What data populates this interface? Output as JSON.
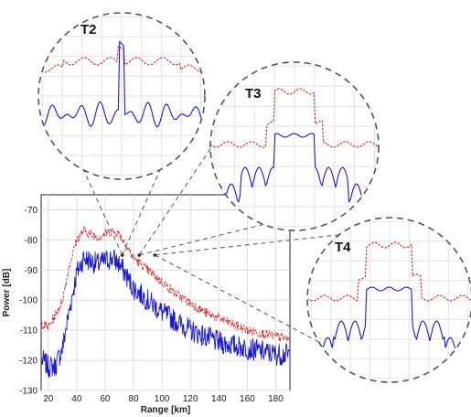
{
  "chart_data": {
    "type": "line",
    "title": "",
    "xlabel": "Range [km]",
    "ylabel": "Power [dB]",
    "xlim": [
      15,
      190
    ],
    "ylim": [
      -130,
      -65
    ],
    "xticks": [
      20,
      40,
      60,
      80,
      100,
      120,
      140,
      160,
      180
    ],
    "yticks": [
      -70,
      -80,
      -90,
      -100,
      -110,
      -120,
      -130
    ],
    "grid": true,
    "series": [
      {
        "color": "#d62020",
        "style": "dashed",
        "x": [
          16,
          20,
          25,
          30,
          35,
          40,
          45,
          50,
          55,
          60,
          65,
          70,
          75,
          80,
          85,
          90,
          95,
          100,
          110,
          120,
          130,
          140,
          150,
          160,
          170,
          180,
          190
        ],
        "values": [
          -108,
          -109,
          -105,
          -100,
          -88,
          -80,
          -77,
          -78,
          -79,
          -78,
          -77,
          -78,
          -82,
          -86,
          -88,
          -90,
          -92,
          -94,
          -98,
          -101,
          -104,
          -106,
          -108,
          -110,
          -111,
          -112,
          -113
        ]
      },
      {
        "color": "#1a1acc",
        "style": "solid",
        "x": [
          16,
          20,
          25,
          30,
          35,
          40,
          45,
          50,
          55,
          60,
          65,
          70,
          75,
          80,
          85,
          90,
          95,
          100,
          110,
          120,
          130,
          140,
          150,
          160,
          170,
          180,
          190
        ],
        "values": [
          -120,
          -122,
          -122,
          -116,
          -103,
          -91,
          -86,
          -87,
          -88,
          -87,
          -86,
          -88,
          -92,
          -96,
          -98,
          -100,
          -102,
          -104,
          -107,
          -110,
          -112,
          -114,
          -115,
          -116,
          -117,
          -118,
          -118
        ]
      }
    ],
    "zooms": [
      {
        "label": "T2",
        "target_km": 72
      },
      {
        "label": "T3",
        "target_km": 84
      },
      {
        "label": "T4",
        "target_km": 95
      }
    ]
  }
}
